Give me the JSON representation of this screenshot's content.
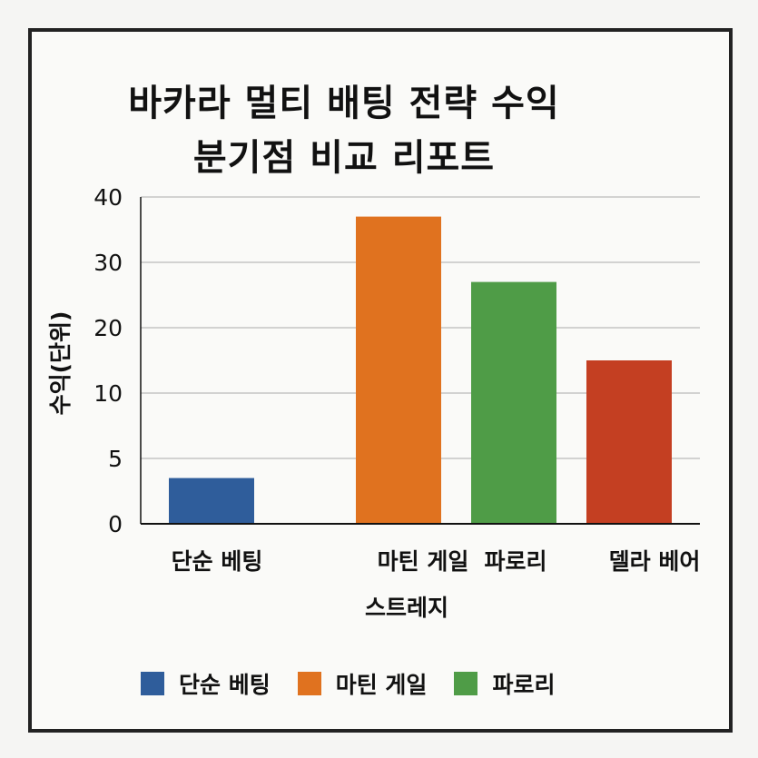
{
  "chart_data": {
    "type": "bar",
    "title_lines": [
      "바카라 멀티 배팅 전략 수익",
      "분기점 비교 리포트"
    ],
    "ylabel": "수익(단위)",
    "xlabel": "스트레지",
    "yticks": [
      "0",
      "5",
      "10",
      "20",
      "30",
      "40"
    ],
    "categories": [
      "단순 베팅",
      "마틴 게일",
      "파로리",
      "델라 베어"
    ],
    "values": [
      3.5,
      37,
      27,
      15
    ],
    "bar_colors": [
      "#2f5d9b",
      "#e0721f",
      "#4f9c47",
      "#c43f22"
    ],
    "grid": true,
    "legend": [
      {
        "label": "단순 베팅",
        "color": "#2f5d9b"
      },
      {
        "label": "마틴 게일",
        "color": "#e0721f"
      },
      {
        "label": "파로리",
        "color": "#4f9c47"
      }
    ],
    "legend_position": "bottom"
  }
}
